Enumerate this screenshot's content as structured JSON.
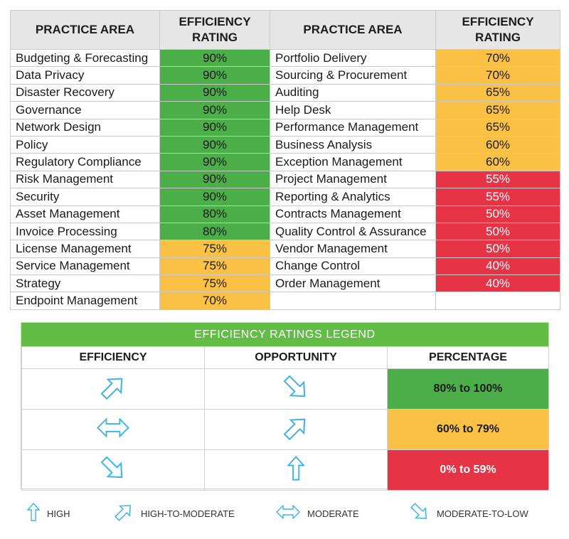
{
  "table": {
    "headers": {
      "practice_area_left": "PRACTICE AREA",
      "rating_left_1": "EFFICIENCY",
      "rating_left_2": "RATING",
      "practice_area_right": "PRACTICE AREA",
      "rating_right_1": "EFFICIENCY",
      "rating_right_2": "RATING"
    },
    "rows": [
      {
        "left_name": "Budgeting & Forecasting",
        "left_pct": "90%",
        "left_level": "g",
        "right_name": "Portfolio Delivery",
        "right_pct": "70%",
        "right_level": "y"
      },
      {
        "left_name": "Data Privacy",
        "left_pct": "90%",
        "left_level": "g",
        "right_name": "Sourcing & Procurement",
        "right_pct": "70%",
        "right_level": "y"
      },
      {
        "left_name": "Disaster Recovery",
        "left_pct": "90%",
        "left_level": "g",
        "right_name": "Auditing",
        "right_pct": "65%",
        "right_level": "y"
      },
      {
        "left_name": "Governance",
        "left_pct": "90%",
        "left_level": "g",
        "right_name": "Help Desk",
        "right_pct": "65%",
        "right_level": "y"
      },
      {
        "left_name": "Network Design",
        "left_pct": "90%",
        "left_level": "g",
        "right_name": "Performance Management",
        "right_pct": "65%",
        "right_level": "y"
      },
      {
        "left_name": "Policy",
        "left_pct": "90%",
        "left_level": "g",
        "right_name": "Business Analysis",
        "right_pct": "60%",
        "right_level": "y"
      },
      {
        "left_name": "Regulatory Compliance",
        "left_pct": "90%",
        "left_level": "g",
        "right_name": "Exception Management",
        "right_pct": "60%",
        "right_level": "y"
      },
      {
        "left_name": "Risk Management",
        "left_pct": "90%",
        "left_level": "g",
        "right_name": "Project Management",
        "right_pct": "55%",
        "right_level": "r"
      },
      {
        "left_name": "Security",
        "left_pct": "90%",
        "left_level": "g",
        "right_name": "Reporting & Analytics",
        "right_pct": "55%",
        "right_level": "r"
      },
      {
        "left_name": "Asset Management",
        "left_pct": "80%",
        "left_level": "g",
        "right_name": "Contracts Management",
        "right_pct": "50%",
        "right_level": "r"
      },
      {
        "left_name": "Invoice Processing",
        "left_pct": "80%",
        "left_level": "g",
        "right_name": "Quality Control & Assurance",
        "right_pct": "50%",
        "right_level": "r"
      },
      {
        "left_name": "License Management",
        "left_pct": "75%",
        "left_level": "y",
        "right_name": "Vendor Management",
        "right_pct": "50%",
        "right_level": "r"
      },
      {
        "left_name": "Service Management",
        "left_pct": "75%",
        "left_level": "y",
        "right_name": "Change Control",
        "right_pct": "40%",
        "right_level": "r"
      },
      {
        "left_name": "Strategy",
        "left_pct": "75%",
        "left_level": "y",
        "right_name": "Order Management",
        "right_pct": "40%",
        "right_level": "r"
      },
      {
        "left_name": "Endpoint Management",
        "left_pct": "70%",
        "left_level": "y",
        "right_name": "",
        "right_pct": "",
        "right_level": "blank"
      }
    ]
  },
  "legend": {
    "title": "EFFICIENCY  RATINGS LEGEND",
    "col_efficiency": "EFFICIENCY",
    "col_opportunity": "OPPORTUNITY",
    "col_percentage": "PERCENTAGE",
    "rows": [
      {
        "efficiency_icon": "arrow-up-right-icon",
        "opportunity_icon": "arrow-down-right-icon",
        "percentage": "80% to 100%",
        "level": "g"
      },
      {
        "efficiency_icon": "arrow-left-right-icon",
        "opportunity_icon": "arrow-up-right-icon",
        "percentage": "60% to 79%",
        "level": "y"
      },
      {
        "efficiency_icon": "arrow-down-right-icon",
        "opportunity_icon": "arrow-up-icon",
        "percentage": "0% to 59%",
        "level": "r"
      }
    ]
  },
  "key": {
    "high": "HIGH",
    "high_to_moderate": "HIGH-TO-MODERATE",
    "moderate": "MODERATE",
    "moderate_to_low": "MODERATE-TO-LOW"
  },
  "colors": {
    "green": "#4cae48",
    "yellow": "#fbc144",
    "red": "#e63446",
    "legend_header": "#63bc46",
    "arrow_blue": "#3eb3e6"
  }
}
